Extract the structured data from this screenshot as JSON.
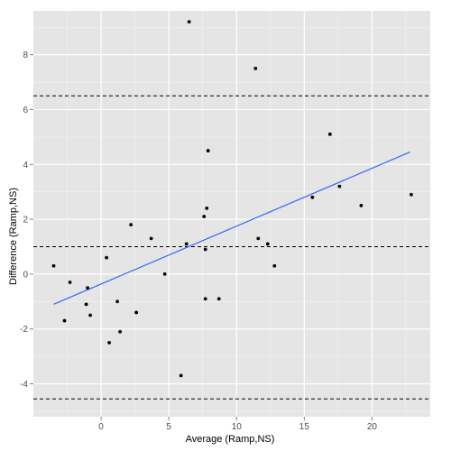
{
  "chart_data": {
    "type": "scatter",
    "xlabel": "Average (Ramp,NS)",
    "ylabel": "Difference (Ramp,NS)",
    "xlim": [
      -5,
      24.3
    ],
    "ylim": [
      -5.2,
      9.6
    ],
    "x_ticks": [
      0,
      5,
      10,
      15,
      20
    ],
    "y_ticks": [
      -4,
      -2,
      0,
      2,
      4,
      6,
      8
    ],
    "grid": true,
    "background": "#e5e5e5",
    "gridline_color": "#ffffff",
    "points": [
      {
        "x": -3.5,
        "y": 0.3
      },
      {
        "x": -2.7,
        "y": -1.7
      },
      {
        "x": -2.3,
        "y": -0.3
      },
      {
        "x": -1.1,
        "y": -1.1
      },
      {
        "x": -1.0,
        "y": -0.5
      },
      {
        "x": -0.8,
        "y": -1.5
      },
      {
        "x": 0.4,
        "y": 0.6
      },
      {
        "x": 0.6,
        "y": -2.5
      },
      {
        "x": 1.2,
        "y": -1.0
      },
      {
        "x": 1.4,
        "y": -2.1
      },
      {
        "x": 2.2,
        "y": 1.8
      },
      {
        "x": 2.6,
        "y": -1.4
      },
      {
        "x": 3.7,
        "y": 1.3
      },
      {
        "x": 4.7,
        "y": 0.0
      },
      {
        "x": 5.9,
        "y": -3.7
      },
      {
        "x": 6.3,
        "y": 1.1
      },
      {
        "x": 6.5,
        "y": 9.2
      },
      {
        "x": 7.6,
        "y": 2.1
      },
      {
        "x": 7.7,
        "y": 0.9
      },
      {
        "x": 7.7,
        "y": -0.9
      },
      {
        "x": 7.8,
        "y": 2.4
      },
      {
        "x": 7.9,
        "y": 4.5
      },
      {
        "x": 8.7,
        "y": -0.9
      },
      {
        "x": 11.4,
        "y": 7.5
      },
      {
        "x": 11.6,
        "y": 1.3
      },
      {
        "x": 12.3,
        "y": 1.1
      },
      {
        "x": 12.8,
        "y": 0.3
      },
      {
        "x": 15.6,
        "y": 2.8
      },
      {
        "x": 16.9,
        "y": 5.1
      },
      {
        "x": 17.6,
        "y": 3.2
      },
      {
        "x": 19.2,
        "y": 2.5
      },
      {
        "x": 22.9,
        "y": 2.9
      }
    ],
    "point_color": "#000000",
    "reference_lines": [
      6.5,
      1.0,
      -4.55
    ],
    "reference_line_style": "dashed",
    "reference_line_color": "#000000",
    "trend_line": {
      "x": [
        -3.5,
        22.8
      ],
      "y": [
        -1.1,
        4.45
      ],
      "color": "#3366ff"
    }
  }
}
